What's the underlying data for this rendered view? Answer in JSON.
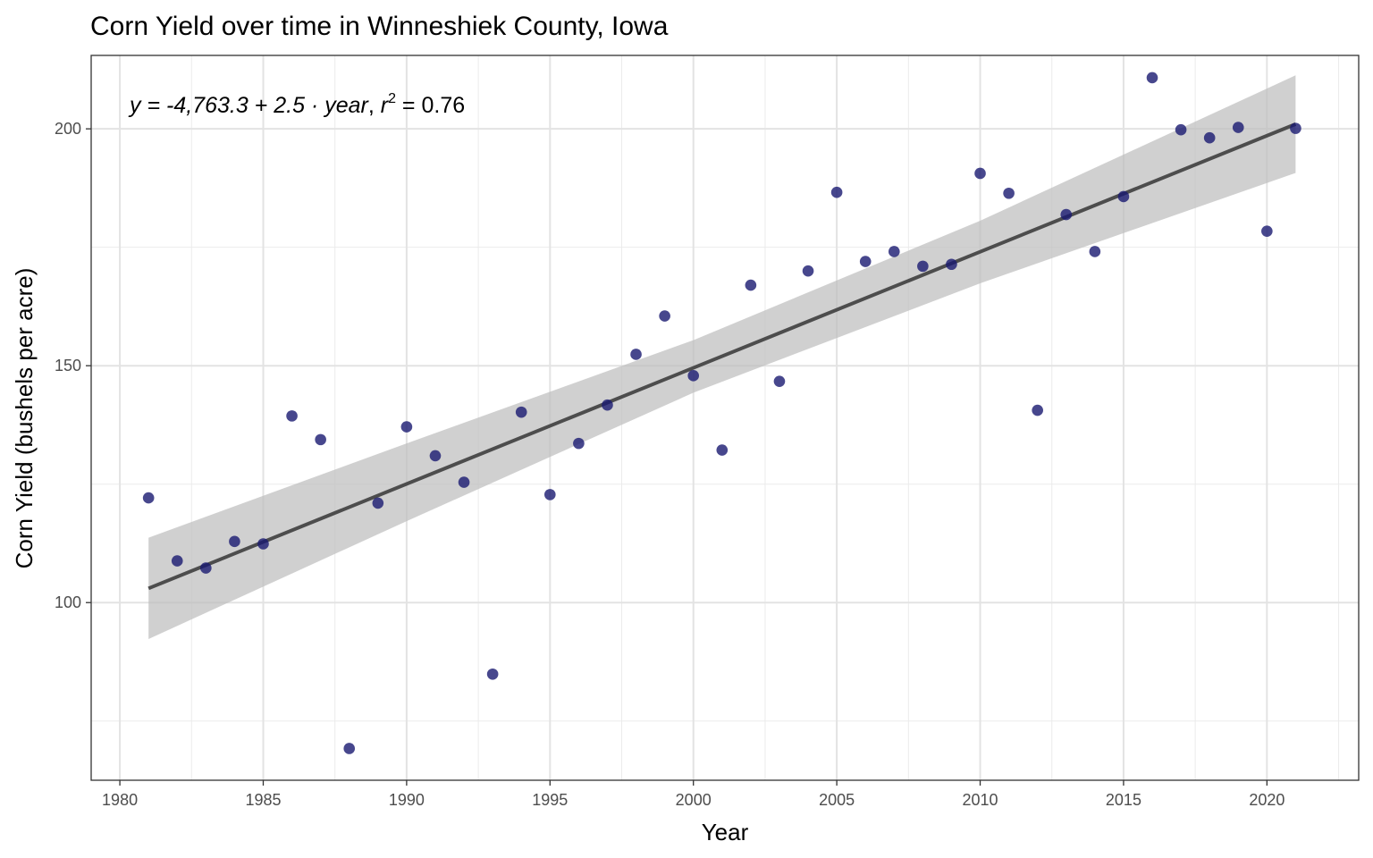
{
  "chart_data": {
    "type": "scatter",
    "title": "Corn Yield over time in Winneshiek County, Iowa",
    "xlabel": "Year",
    "ylabel": "Corn Yield (bushels per acre)",
    "xlim": [
      1979,
      2023.2
    ],
    "ylim": [
      62.5,
      215.5
    ],
    "x_ticks": [
      1980,
      1985,
      1990,
      1995,
      2000,
      2005,
      2010,
      2015,
      2020
    ],
    "y_ticks": [
      100,
      150,
      200
    ],
    "grid": true,
    "legend": "none",
    "point_color": "#191970",
    "fit_line_color": "#4d4d4d",
    "band_color": "#bebebe",
    "annotation": {
      "prefix": "y = -4,763.3 + 2.5 · ",
      "var": "year",
      "sep": ",  ",
      "r": "r",
      "sup": "2",
      "suffix": " = 0.76"
    },
    "x": [
      1981,
      1982,
      1983,
      1984,
      1985,
      1986,
      1987,
      1988,
      1989,
      1990,
      1991,
      1992,
      1993,
      1994,
      1995,
      1996,
      1997,
      1998,
      1999,
      2000,
      2001,
      2002,
      2003,
      2004,
      2005,
      2006,
      2007,
      2008,
      2009,
      2010,
      2011,
      2012,
      2013,
      2014,
      2015,
      2016,
      2017,
      2018,
      2019,
      2020,
      2021
    ],
    "y": [
      122.1,
      108.8,
      107.3,
      112.9,
      112.4,
      139.4,
      134.4,
      69.2,
      121.0,
      137.1,
      131.0,
      125.4,
      84.9,
      140.2,
      122.8,
      133.6,
      141.7,
      152.4,
      160.5,
      147.9,
      132.2,
      167.0,
      146.7,
      170.0,
      186.6,
      172.0,
      174.1,
      171.0,
      171.4,
      190.6,
      186.4,
      140.6,
      181.9,
      174.1,
      185.7,
      210.8,
      199.8,
      198.1,
      200.3,
      178.4,
      200.1
    ],
    "fit": {
      "intercept": -4763.3,
      "slope": 2.5,
      "x_range": [
        1981,
        2021
      ],
      "y_range": [
        103.0,
        201.0
      ]
    },
    "confidence_band": {
      "x": [
        1981,
        1990,
        2000,
        2010,
        2021
      ],
      "lower": [
        92.3,
        117.2,
        144.3,
        167.4,
        190.7
      ],
      "upper": [
        113.7,
        133.6,
        155.4,
        180.6,
        211.3
      ]
    }
  }
}
